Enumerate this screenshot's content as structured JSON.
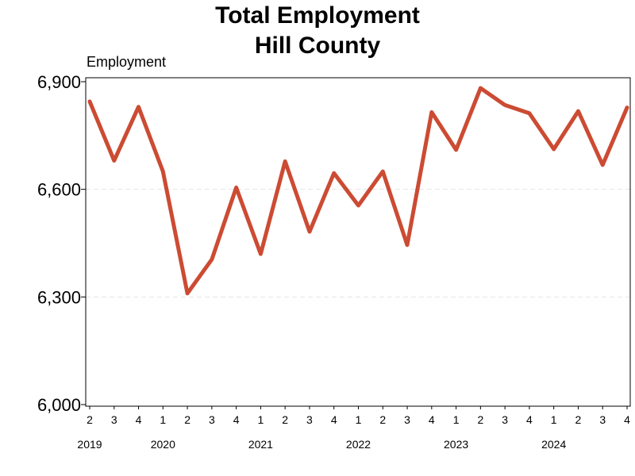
{
  "chart_data": {
    "type": "line",
    "title_lines": [
      "Total Employment",
      "Hill County"
    ],
    "ylabel": "Employment",
    "ylim": [
      6000,
      6900
    ],
    "yticks": [
      6000,
      6300,
      6600,
      6900
    ],
    "ytick_labels": [
      "6,000",
      "6,300",
      "6,600",
      "6,900"
    ],
    "grid": "horizontal dashed",
    "color": "#cc4b33",
    "x_quarter_labels": [
      "2",
      "3",
      "4",
      "1",
      "2",
      "3",
      "4",
      "1",
      "2",
      "3",
      "4",
      "1",
      "2",
      "3",
      "4",
      "1",
      "2",
      "3",
      "4",
      "1",
      "2",
      "3",
      "4"
    ],
    "x_year_labels": [
      {
        "label": "2019",
        "index": 0
      },
      {
        "label": "2020",
        "index": 3
      },
      {
        "label": "2021",
        "index": 7
      },
      {
        "label": "2022",
        "index": 11
      },
      {
        "label": "2023",
        "index": 15
      },
      {
        "label": "2024",
        "index": 19
      }
    ],
    "series": [
      {
        "values": [
          6845,
          6680,
          6830,
          6650,
          6310,
          6405,
          6605,
          6420,
          6678,
          6482,
          6645,
          6555,
          6650,
          6445,
          6815,
          6710,
          6882,
          6835,
          6812,
          6712,
          6818,
          6668,
          6828
        ]
      }
    ]
  }
}
